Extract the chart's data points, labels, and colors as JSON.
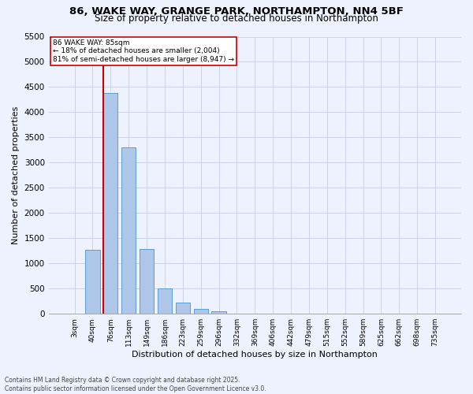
{
  "title_line1": "86, WAKE WAY, GRANGE PARK, NORTHAMPTON, NN4 5BF",
  "title_line2": "Size of property relative to detached houses in Northampton",
  "xlabel": "Distribution of detached houses by size in Northampton",
  "ylabel": "Number of detached properties",
  "categories": [
    "3sqm",
    "40sqm",
    "76sqm",
    "113sqm",
    "149sqm",
    "186sqm",
    "223sqm",
    "259sqm",
    "296sqm",
    "332sqm",
    "369sqm",
    "406sqm",
    "442sqm",
    "479sqm",
    "515sqm",
    "552sqm",
    "589sqm",
    "625sqm",
    "662sqm",
    "698sqm",
    "735sqm"
  ],
  "values": [
    0,
    1270,
    4380,
    3300,
    1280,
    500,
    230,
    90,
    55,
    0,
    0,
    0,
    0,
    0,
    0,
    0,
    0,
    0,
    0,
    0,
    0
  ],
  "bar_color": "#aec6e8",
  "bar_edge_color": "#5a9fd4",
  "vline_color": "#cc0000",
  "vline_x_index": 1.6,
  "annotation_text": "86 WAKE WAY: 85sqm\n← 18% of detached houses are smaller (2,004)\n81% of semi-detached houses are larger (8,947) →",
  "annotation_box_color": "#cc0000",
  "annotation_fontsize": 6.5,
  "ylim": [
    0,
    5500
  ],
  "yticks": [
    0,
    500,
    1000,
    1500,
    2000,
    2500,
    3000,
    3500,
    4000,
    4500,
    5000,
    5500
  ],
  "background_color": "#eef2ff",
  "grid_color": "#c8d0e8",
  "footnote": "Contains HM Land Registry data © Crown copyright and database right 2025.\nContains public sector information licensed under the Open Government Licence v3.0.",
  "title_fontsize": 9.5,
  "subtitle_fontsize": 8.5,
  "xlabel_fontsize": 8,
  "ylabel_fontsize": 8
}
